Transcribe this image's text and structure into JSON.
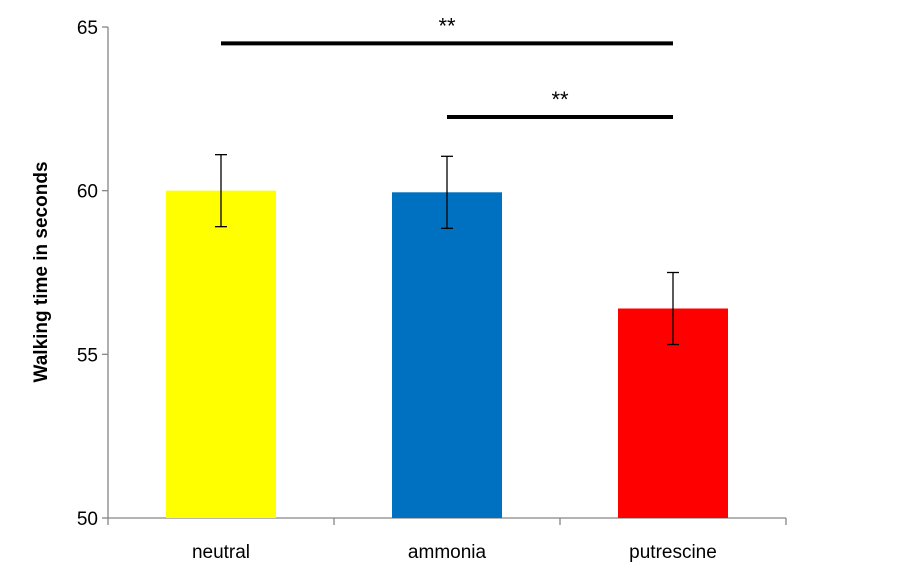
{
  "chart_data": {
    "type": "bar",
    "title": "",
    "xlabel": "",
    "ylabel": "Walking time in seconds",
    "categories": [
      "neutral",
      "ammonia",
      "putrescine"
    ],
    "values": [
      60.0,
      59.95,
      56.4
    ],
    "error": [
      1.1,
      1.1,
      1.1
    ],
    "colors": [
      "#ffff00",
      "#0070c0",
      "#ff0000"
    ],
    "ylim": [
      50,
      65
    ],
    "yticks": [
      50,
      55,
      60,
      65
    ],
    "ytick_labels": [
      "50",
      "55",
      "60",
      "65"
    ],
    "grid": false,
    "legend": "none",
    "annotations": [
      {
        "from": "neutral",
        "to": "putrescine",
        "y": 64.5,
        "label": "**"
      },
      {
        "from": "ammonia",
        "to": "putrescine",
        "y": 62.25,
        "label": "**"
      }
    ]
  }
}
